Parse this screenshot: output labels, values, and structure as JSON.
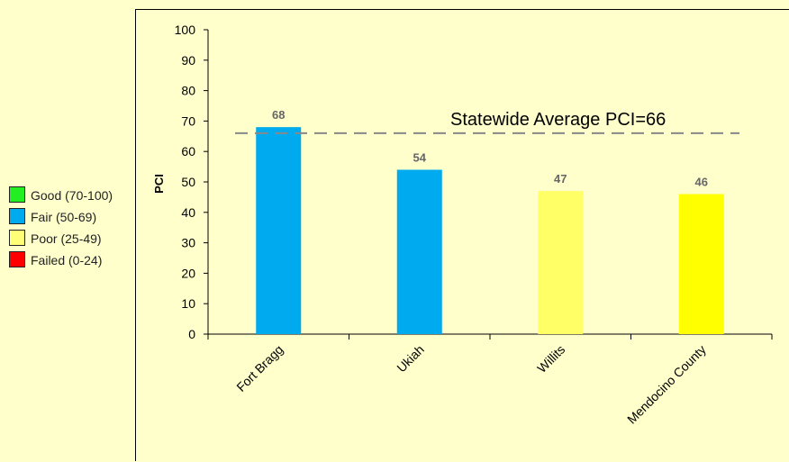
{
  "legend": {
    "items": [
      {
        "label": "Good (70-100)",
        "color": "#22ee22"
      },
      {
        "label": "Fair (50-69)",
        "color": "#00aaee"
      },
      {
        "label": "Poor (25-49)",
        "color": "#ffff77"
      },
      {
        "label": "Failed (0-24)",
        "color": "#ff0000"
      }
    ]
  },
  "chart_data": {
    "type": "bar",
    "categories": [
      "Fort Bragg",
      "Ukiah",
      "Willits",
      "Mendocino County"
    ],
    "values": [
      68,
      54,
      47,
      46
    ],
    "bar_colors": [
      "#00aaee",
      "#00aaee",
      "#ffff66",
      "#ffff00"
    ],
    "title": "",
    "xlabel": "",
    "ylabel": "PCI",
    "ylim": [
      0,
      100
    ],
    "yticks": [
      0,
      10,
      20,
      30,
      40,
      50,
      60,
      70,
      80,
      90,
      100
    ],
    "data_labels": [
      "68",
      "54",
      "47",
      "46"
    ],
    "reference_line": {
      "value": 66,
      "label": "Statewide Average PCI=66",
      "style": "dashed",
      "color": "#888888"
    },
    "grid": false
  }
}
